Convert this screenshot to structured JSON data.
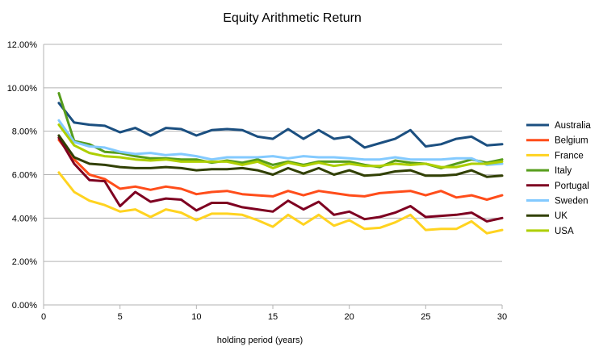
{
  "chart_data": {
    "type": "line",
    "title": "Equity Arithmetic Return",
    "xlabel": "holding period (years)",
    "ylabel": "",
    "xlim": [
      0,
      30
    ],
    "ylim": [
      0,
      12
    ],
    "xticks": [
      0,
      5,
      10,
      15,
      20,
      25,
      30
    ],
    "yticks": [
      "0.00%",
      "2.00%",
      "4.00%",
      "6.00%",
      "8.00%",
      "10.00%",
      "12.00%"
    ],
    "y_format": "percent",
    "grid": "horizontal",
    "legend_position": "right",
    "x": [
      1,
      2,
      3,
      4,
      5,
      6,
      7,
      8,
      9,
      10,
      11,
      12,
      13,
      14,
      15,
      16,
      17,
      18,
      19,
      20,
      21,
      22,
      23,
      24,
      25,
      26,
      27,
      28,
      29,
      30
    ],
    "series": [
      {
        "name": "Australia",
        "color": "#1b4f80",
        "values": [
          9.3,
          8.4,
          8.3,
          8.25,
          7.95,
          8.15,
          7.8,
          8.15,
          8.1,
          7.8,
          8.05,
          8.1,
          8.05,
          7.75,
          7.65,
          8.1,
          7.65,
          8.05,
          7.65,
          7.75,
          7.25,
          7.45,
          7.65,
          8.05,
          7.3,
          7.4,
          7.65,
          7.75,
          7.35,
          7.4
        ]
      },
      {
        "name": "Belgium",
        "color": "#ff4d1a",
        "values": [
          7.6,
          6.7,
          6.0,
          5.8,
          5.35,
          5.45,
          5.3,
          5.45,
          5.35,
          5.1,
          5.2,
          5.25,
          5.1,
          5.05,
          5.0,
          5.25,
          5.05,
          5.25,
          5.15,
          5.05,
          5.0,
          5.15,
          5.2,
          5.25,
          5.05,
          5.25,
          4.95,
          5.05,
          4.85,
          5.05
        ]
      },
      {
        "name": "France",
        "color": "#ffd320",
        "values": [
          6.1,
          5.2,
          4.8,
          4.6,
          4.3,
          4.4,
          4.05,
          4.4,
          4.25,
          3.9,
          4.2,
          4.2,
          4.15,
          3.9,
          3.6,
          4.15,
          3.7,
          4.15,
          3.65,
          3.9,
          3.5,
          3.55,
          3.8,
          4.15,
          3.45,
          3.5,
          3.5,
          3.85,
          3.3,
          3.45
        ]
      },
      {
        "name": "Italy",
        "color": "#579d1c",
        "values": [
          9.75,
          7.55,
          7.4,
          7.05,
          7.0,
          6.85,
          6.75,
          6.75,
          6.7,
          6.7,
          6.55,
          6.65,
          6.55,
          6.7,
          6.45,
          6.6,
          6.45,
          6.6,
          6.6,
          6.6,
          6.45,
          6.35,
          6.65,
          6.55,
          6.5,
          6.3,
          6.5,
          6.7,
          6.55,
          6.7
        ]
      },
      {
        "name": "Portugal",
        "color": "#7e0021",
        "values": [
          7.7,
          6.5,
          5.75,
          5.7,
          4.55,
          5.2,
          4.75,
          4.9,
          4.85,
          4.35,
          4.7,
          4.7,
          4.5,
          4.4,
          4.3,
          4.8,
          4.4,
          4.75,
          4.15,
          4.3,
          3.95,
          4.05,
          4.25,
          4.55,
          4.05,
          4.1,
          4.15,
          4.25,
          3.85,
          4.0
        ]
      },
      {
        "name": "Sweden",
        "color": "#83caff",
        "values": [
          8.5,
          7.5,
          7.3,
          7.25,
          7.05,
          6.95,
          7.0,
          6.9,
          6.95,
          6.85,
          6.7,
          6.8,
          6.8,
          6.8,
          6.85,
          6.75,
          6.85,
          6.8,
          6.8,
          6.75,
          6.7,
          6.7,
          6.8,
          6.7,
          6.7,
          6.7,
          6.75,
          6.75,
          6.45,
          6.5
        ]
      },
      {
        "name": "UK",
        "color": "#314004",
        "values": [
          7.8,
          6.8,
          6.5,
          6.45,
          6.35,
          6.3,
          6.3,
          6.35,
          6.3,
          6.2,
          6.25,
          6.25,
          6.3,
          6.2,
          6.0,
          6.3,
          6.05,
          6.3,
          6.0,
          6.2,
          5.95,
          6.0,
          6.15,
          6.2,
          5.95,
          5.95,
          6.0,
          6.2,
          5.9,
          5.95
        ]
      },
      {
        "name": "USA",
        "color": "#aecf00",
        "values": [
          8.3,
          7.35,
          7.0,
          6.85,
          6.8,
          6.7,
          6.65,
          6.7,
          6.6,
          6.6,
          6.6,
          6.6,
          6.45,
          6.6,
          6.3,
          6.55,
          6.4,
          6.55,
          6.4,
          6.5,
          6.4,
          6.4,
          6.5,
          6.45,
          6.5,
          6.35,
          6.35,
          6.5,
          6.5,
          6.6
        ]
      }
    ]
  }
}
